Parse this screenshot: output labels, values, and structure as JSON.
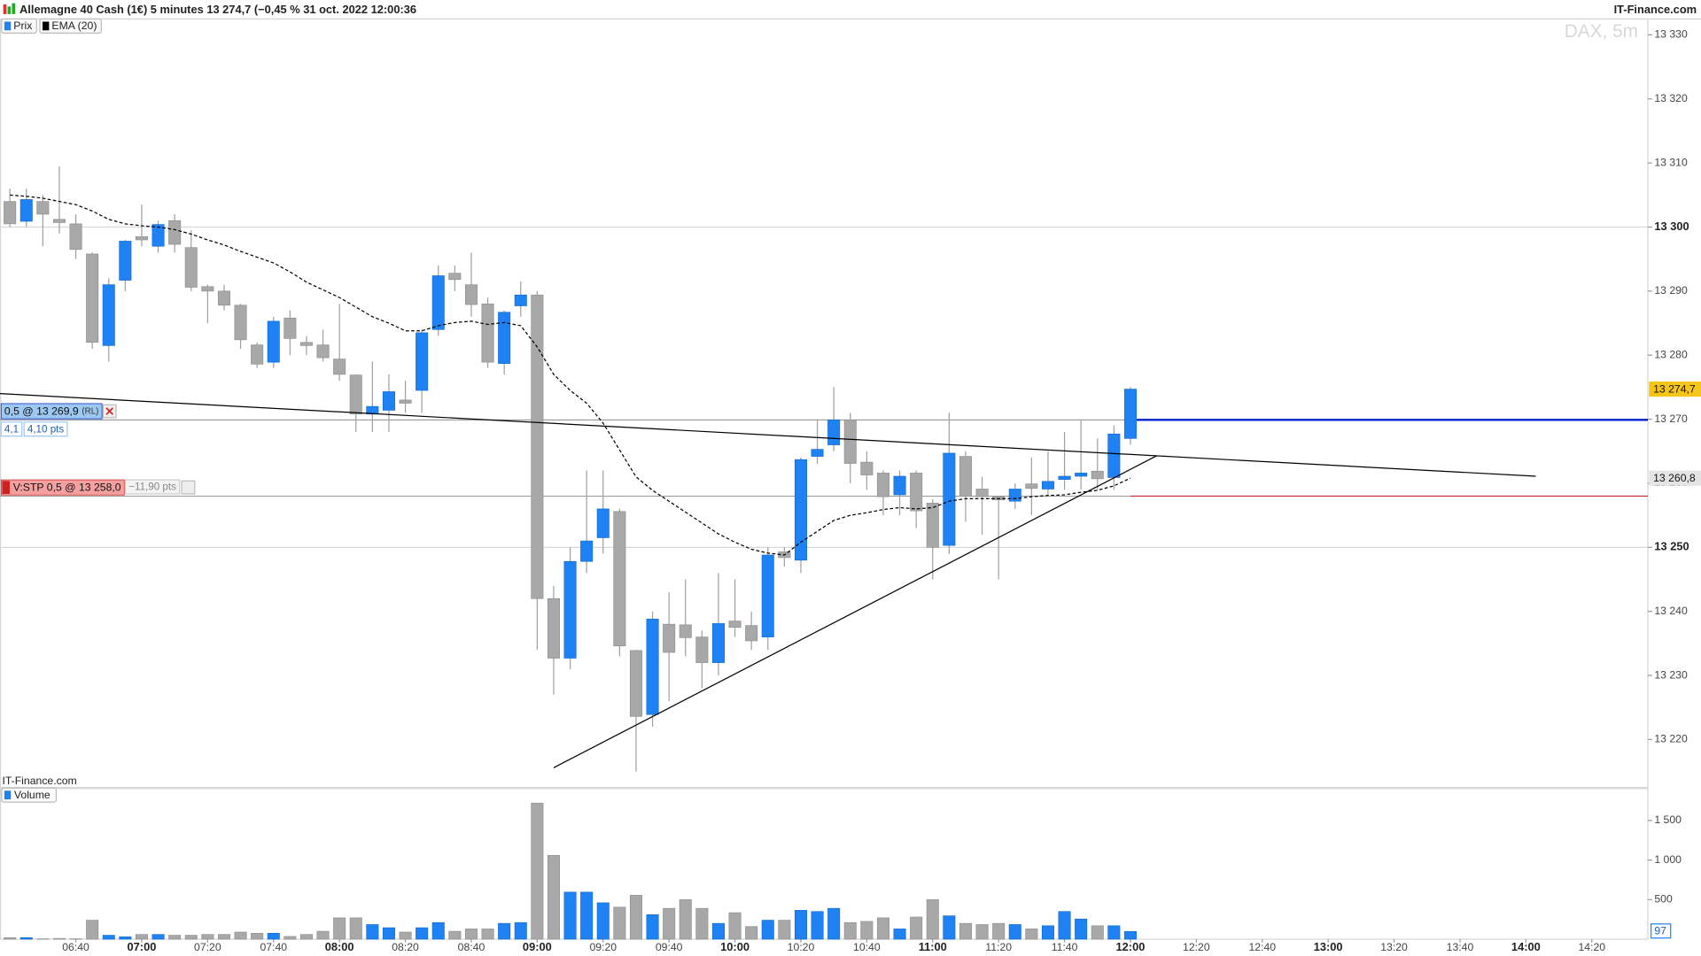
{
  "chart_data": {
    "type": "candlestick",
    "header": "Allemagne 40 Cash (1€) 5 minutes 13 274,7 (−0,45 % 31 oct. 2022 12:00:36",
    "brand": "IT-Finance.com",
    "watermark": "DAX, 5m",
    "footer_brand": "IT-Finance.com",
    "price_name": "Prix",
    "up_color": "#1e82f5",
    "down_color": "#a8a8a8",
    "x": [
      "06:20",
      "06:25",
      "06:30",
      "06:35",
      "06:40",
      "06:45",
      "06:50",
      "06:55",
      "07:00",
      "07:05",
      "07:10",
      "07:15",
      "07:20",
      "07:25",
      "07:30",
      "07:35",
      "07:40",
      "07:45",
      "07:50",
      "07:55",
      "08:00",
      "08:05",
      "08:10",
      "08:15",
      "08:20",
      "08:25",
      "08:30",
      "08:35",
      "08:40",
      "08:45",
      "08:50",
      "08:55",
      "09:00",
      "09:05",
      "09:10",
      "09:15",
      "09:20",
      "09:25",
      "09:30",
      "09:35",
      "09:40",
      "09:45",
      "09:50",
      "09:55",
      "10:00",
      "10:05",
      "10:10",
      "10:15",
      "10:20",
      "10:25",
      "10:30",
      "10:35",
      "10:40",
      "10:45",
      "10:50",
      "10:55",
      "11:00",
      "11:05",
      "11:10",
      "11:15",
      "11:20",
      "11:25",
      "11:30",
      "11:35",
      "11:40",
      "11:45",
      "11:50",
      "11:55",
      "12:00"
    ],
    "open": [
      13304,
      13300.9,
      13304,
      13301.2,
      13300.5,
      13295.8,
      13281.5,
      13291.7,
      13298.5,
      13297,
      13301,
      13296.8,
      13290.7,
      13290,
      13287.8,
      13281.6,
      13278.9,
      13285.8,
      13282,
      13281.6,
      13279.4,
      13276.9,
      13270.8,
      13271.4,
      13273,
      13274.5,
      13284,
      13292.8,
      13291,
      13288,
      13278.7,
      13287.7,
      13289.4,
      13242,
      13232.7,
      13247.8,
      13251.5,
      13255.6,
      13233.9,
      13223.9,
      13238,
      13237.9,
      13236,
      13232,
      13238.5,
      13237.8,
      13236,
      13249.3,
      13248,
      13264.2,
      13266,
      13269.9,
      13263.3,
      13261.6,
      13258.2,
      13261.6,
      13256.9,
      13250.3,
      13264.2,
      13259.1,
      13257.9,
      13257.2,
      13259.9,
      13259.1,
      13260.6,
      13261.1,
      13261.9,
      13260.9,
      13267
    ],
    "high": [
      13306,
      13306,
      13305,
      13309.5,
      13302,
      13296,
      13292,
      13298,
      13303.5,
      13301,
      13302,
      13299.5,
      13291,
      13291,
      13288,
      13282,
      13286,
      13287,
      13283,
      13284,
      13288,
      13277,
      13279,
      13277,
      13276,
      13284,
      13294,
      13294,
      13296,
      13289,
      13287,
      13291.5,
      13290,
      13244,
      13250,
      13262,
      13262,
      13256,
      13234,
      13240,
      13243,
      13245,
      13237,
      13246,
      13245,
      13240,
      13250,
      13250,
      13264,
      13270,
      13275,
      13271,
      13265,
      13262,
      13262,
      13262,
      13257.5,
      13271,
      13265,
      13261,
      13258,
      13260,
      13264,
      13265,
      13268,
      13270,
      13267,
      13269,
      13275
    ],
    "low": [
      13300,
      13300,
      13297,
      13299,
      13295,
      13281,
      13279,
      13290,
      13297,
      13296,
      13296,
      13290,
      13285,
      13287,
      13281,
      13278,
      13278,
      13280,
      13280,
      13279,
      13276,
      13268,
      13268,
      13268,
      13271,
      13271,
      13283,
      13290,
      13286,
      13278,
      13277,
      13286,
      13234,
      13227,
      13231,
      13246,
      13249,
      13233,
      13215,
      13222,
      13226,
      13233,
      13228,
      13230,
      13236,
      13234,
      13234,
      13247,
      13246,
      13263,
      13265,
      13260,
      13259,
      13255,
      13255,
      13253,
      13245,
      13249,
      13254,
      13252,
      13245,
      13256,
      13255,
      13258,
      13259,
      13259,
      13259,
      13259,
      13266
    ],
    "close": [
      13300.5,
      13304.3,
      13302,
      13300.7,
      13296.5,
      13282,
      13291,
      13297.8,
      13298,
      13300.4,
      13297.3,
      13290.6,
      13290,
      13287.8,
      13282.4,
      13278.6,
      13285.3,
      13282.6,
      13281.5,
      13279.6,
      13277,
      13270.8,
      13272,
      13274.3,
      13272.5,
      13283.5,
      13292.4,
      13291.8,
      13287.9,
      13278.9,
      13286.7,
      13289.4,
      13242,
      13232.7,
      13247.8,
      13251,
      13256,
      13234.6,
      13223.6,
      13238.8,
      13233.6,
      13235.9,
      13232,
      13238.1,
      13237.5,
      13235.4,
      13248.8,
      13248.4,
      13263.7,
      13265.3,
      13269.9,
      13263.1,
      13261.3,
      13257.9,
      13261.1,
      13255.7,
      13250,
      13264.7,
      13258,
      13257.9,
      13257.4,
      13259.1,
      13259.2,
      13260.3,
      13261.1,
      13261.6,
      13260.7,
      13267.7,
      13274.7
    ],
    "last_label": "13 274,7",
    "ema": {
      "name": "EMA (20)",
      "color": "#000000",
      "last_label": "13 260,8",
      "values": [
        13305,
        13304.8,
        13304.5,
        13304,
        13303.5,
        13302.5,
        13301.2,
        13300.5,
        13300.2,
        13300,
        13299.6,
        13298.9,
        13298,
        13297.2,
        13296.2,
        13295.3,
        13294.4,
        13293,
        13291.4,
        13290.2,
        13289,
        13287.5,
        13286,
        13285,
        13283.8,
        13283.8,
        13284.6,
        13285.1,
        13285.3,
        13284.8,
        13285.1,
        13284.6,
        13281.3,
        13277,
        13274.5,
        13272.5,
        13269.4,
        13265.2,
        13261,
        13258.9,
        13257.2,
        13255.5,
        13253.8,
        13252.1,
        13250.8,
        13249.7,
        13249.1,
        13248.8,
        13250.8,
        13252.5,
        13254.2,
        13255,
        13255.4,
        13255.9,
        13256.2,
        13256,
        13256.2,
        13257.2,
        13257.6,
        13257.6,
        13257.6,
        13257.6,
        13257.9,
        13258.1,
        13258.2,
        13258.6,
        13258.9,
        13259.6,
        13260.8
      ]
    },
    "xlim": [
      "06:17",
      "14:37"
    ],
    "xticks": [
      "06:40",
      "07:00",
      "07:20",
      "07:40",
      "08:00",
      "08:20",
      "08:40",
      "09:00",
      "09:20",
      "09:40",
      "10:00",
      "10:20",
      "10:40",
      "11:00",
      "11:20",
      "11:40",
      "12:00",
      "12:20",
      "12:40",
      "13:00",
      "13:20",
      "13:40",
      "14:00",
      "14:20"
    ],
    "ylim": [
      13212.6,
      13332.4
    ],
    "yticks": [
      {
        "value": 13220,
        "label": "13 220"
      },
      {
        "value": 13230,
        "label": "13 230"
      },
      {
        "value": 13240,
        "label": "13 240"
      },
      {
        "value": 13250,
        "label": "13 250"
      },
      {
        "value": 13260,
        "label": "13 260"
      },
      {
        "value": 13270,
        "label": "13 270"
      },
      {
        "value": 13280,
        "label": "13 280"
      },
      {
        "value": 13290,
        "label": "13 290"
      },
      {
        "value": 13300,
        "label": "13 300"
      },
      {
        "value": 13310,
        "label": "13 310"
      },
      {
        "value": 13320,
        "label": "13 320"
      },
      {
        "value": 13330,
        "label": "13 330"
      }
    ],
    "grid_lines": [
      13250,
      13300
    ],
    "trendlines": [
      {
        "color": "#000000",
        "x": [
          "06:17",
          "14:03"
        ],
        "y": [
          13274.0,
          13261.1
        ]
      },
      {
        "color": "#000000",
        "x": [
          "09:05",
          "12:08"
        ],
        "y": [
          13215.6,
          13264.3
        ]
      }
    ],
    "orders": [
      {
        "text": "0,5 @ 13 269,9",
        "tag": "(RL)",
        "price": 13269.9,
        "color": "#0022cc",
        "box": "#9cc8f2",
        "details": [
          "4,1",
          "4,10 pts"
        ]
      },
      {
        "text": "V:STP 0,5 @ 13 258,0",
        "price": 13258.0,
        "color": "#cc2222",
        "box": "#f4a0a0",
        "details": [
          "−11,90 pts"
        ]
      }
    ],
    "volume": {
      "name": "Volume",
      "values": [
        20,
        20,
        5,
        10,
        5,
        240,
        50,
        30,
        60,
        60,
        50,
        50,
        60,
        60,
        90,
        75,
        75,
        35,
        60,
        100,
        270,
        270,
        185,
        145,
        90,
        145,
        210,
        100,
        130,
        130,
        200,
        210,
        1720,
        1060,
        595,
        595,
        460,
        405,
        555,
        310,
        390,
        500,
        390,
        200,
        335,
        160,
        240,
        240,
        365,
        350,
        390,
        210,
        225,
        270,
        130,
        280,
        500,
        295,
        200,
        185,
        200,
        185,
        130,
        170,
        350,
        255,
        170,
        170,
        97
      ],
      "ylim": [
        0,
        1897
      ],
      "yticks": [
        500,
        {
          "value": 1000,
          "label": "1 000"
        },
        {
          "value": 1500,
          "label": "1 500"
        }
      ]
    }
  }
}
